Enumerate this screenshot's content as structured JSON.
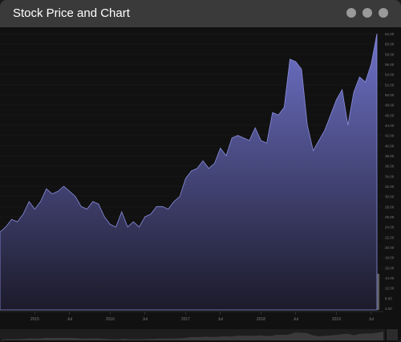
{
  "window": {
    "title": "Stock Price and Chart",
    "controls": [
      "window-button",
      "window-button",
      "window-button"
    ]
  },
  "colors": {
    "area_top": "#6e72c8",
    "area_bottom": "#1c1a2a",
    "volume": "#5a5a5a",
    "background": "#111111"
  },
  "chart_data": {
    "type": "area",
    "title": "",
    "y_axis_labels": [
      "4.00",
      "8.00",
      "12.00",
      "14.00",
      "16.00",
      "18.00",
      "20.00",
      "22.00",
      "24.00",
      "26.00",
      "28.00",
      "30.00",
      "32.00",
      "34.00",
      "36.00",
      "38.00",
      "40.00",
      "42.00",
      "44.00",
      "46.00",
      "48.00",
      "50.00",
      "52.00",
      "54.00",
      "56.00",
      "58.00",
      "60.00",
      "62.00"
    ],
    "x_axis_labels": [
      {
        "label": "2015",
        "index": 6
      },
      {
        "label": "Jul",
        "index": 12
      },
      {
        "label": "2016",
        "index": 19
      },
      {
        "label": "Jul",
        "index": 25
      },
      {
        "label": "2017",
        "index": 32
      },
      {
        "label": "Jul",
        "index": 38
      },
      {
        "label": "2018",
        "index": 45
      },
      {
        "label": "Jul",
        "index": 51
      },
      {
        "label": "2019",
        "index": 58
      },
      {
        "label": "Jul",
        "index": 64
      }
    ],
    "price": [
      23.0,
      24.0,
      25.5,
      25.0,
      26.5,
      29.0,
      27.5,
      29.0,
      31.5,
      30.5,
      31.0,
      32.0,
      31.0,
      30.0,
      28.0,
      27.5,
      29.0,
      28.5,
      26.0,
      24.5,
      24.0,
      27.0,
      24.0,
      25.0,
      24.0,
      26.0,
      26.5,
      28.0,
      28.0,
      27.5,
      29.0,
      30.0,
      33.5,
      35.0,
      35.5,
      37.0,
      35.5,
      36.5,
      39.5,
      38.0,
      41.5,
      42.0,
      41.5,
      41.0,
      43.5,
      41.0,
      40.5,
      46.5,
      46.0,
      47.5,
      57.0,
      56.5,
      55.0,
      44.0,
      39.0,
      41.0,
      43.0,
      46.0,
      49.0,
      51.0,
      44.0,
      50.5,
      53.5,
      52.5,
      56.0,
      62.0
    ],
    "volume": [
      12,
      11,
      14,
      13,
      10,
      12,
      13,
      12,
      12,
      11,
      11,
      10,
      12,
      14,
      12,
      13,
      11,
      9,
      11,
      13,
      10,
      9,
      10,
      11,
      10,
      9,
      8,
      11,
      9,
      9,
      8,
      8,
      8,
      8,
      6,
      9,
      9,
      6,
      8,
      8,
      7,
      8,
      7,
      8,
      10,
      8,
      8,
      7,
      7,
      6,
      8,
      8,
      8,
      11,
      10,
      8,
      7,
      6,
      8,
      6,
      8,
      7,
      8,
      7,
      8,
      9
    ]
  }
}
